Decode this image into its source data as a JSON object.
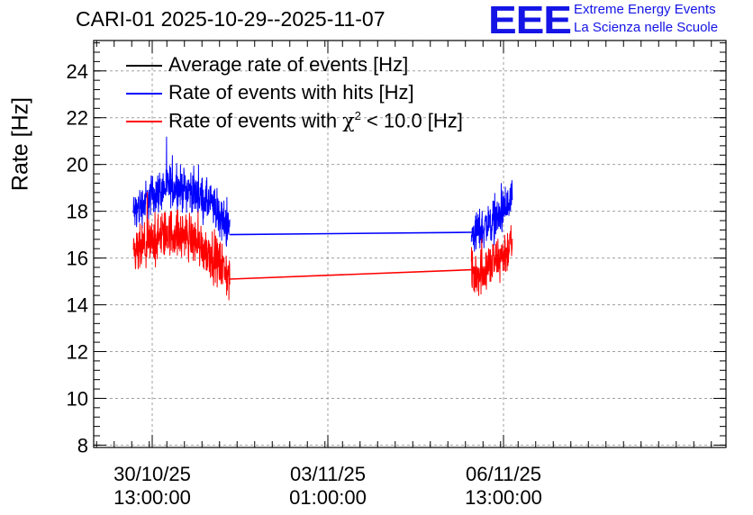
{
  "header": {
    "title": "CARI-01 2025-10-29--2025-11-07",
    "logo_text": "EEE",
    "logo_line1": "Extreme Energy Events",
    "logo_line2": "La Scienza nelle Scuole"
  },
  "colors": {
    "avg": "#000000",
    "hits": "#0000ff",
    "chi2": "#ff0000",
    "grid": "#a0a0a0",
    "brand": "#1414e6"
  },
  "chart_data": {
    "type": "line",
    "title": "CARI-01 2025-10-29--2025-11-07",
    "xlabel": "",
    "ylabel": "Rate [Hz]",
    "x_unit": "hours since 29/10/25 00:00",
    "xlim": [
      17,
      233
    ],
    "ylim": [
      7.9,
      25.3
    ],
    "yticks": [
      8,
      10,
      12,
      14,
      16,
      18,
      20,
      22,
      24
    ],
    "xticks": [
      {
        "x": 37,
        "label": "30/10/25",
        "label2": "13:00:00"
      },
      {
        "x": 97,
        "label": "03/11/25",
        "label2": "01:00:00"
      },
      {
        "x": 157,
        "label": "06/11/25",
        "label2": "13:00:00"
      }
    ],
    "grid": true,
    "legend": [
      {
        "name": "Average rate of events [Hz]",
        "color": "#000000"
      },
      {
        "name": "Rate of events with hits [Hz]",
        "color": "#0000ff"
      },
      {
        "name_prefix": "Rate of events with ",
        "chi_symbol": "χ",
        "chi_exp": "2",
        "name_suffix": " < 10.0 [Hz]",
        "color": "#ff0000"
      }
    ],
    "legend_position": "top-left",
    "series": [
      {
        "name": "Rate of events with hits [Hz]",
        "color": "#0000ff",
        "noise_band": 1.3,
        "segments": [
          {
            "x": [
              30.5,
              37,
              43,
              50,
              57,
              63.5
            ],
            "y": [
              17.9,
              18.7,
              19.1,
              18.9,
              18.3,
              17.2
            ]
          },
          {
            "x": [
              63.5,
              146
            ],
            "y": [
              17.0,
              17.1
            ]
          },
          {
            "x": [
              146,
              155,
              160
            ],
            "y": [
              17.0,
              17.7,
              18.4
            ]
          }
        ]
      },
      {
        "name": "Rate of events with χ2 < 10.0 [Hz]",
        "color": "#ff0000",
        "noise_band": 1.5,
        "segments": [
          {
            "x": [
              30.5,
              37,
              43,
              50,
              57,
              63.5
            ],
            "y": [
              16.1,
              16.7,
              17.1,
              16.9,
              16.2,
              15.2
            ]
          },
          {
            "x": [
              63.5,
              146
            ],
            "y": [
              15.1,
              15.5
            ]
          },
          {
            "x": [
              146,
              155,
              160
            ],
            "y": [
              15.2,
              15.9,
              16.6
            ]
          }
        ]
      }
    ]
  }
}
